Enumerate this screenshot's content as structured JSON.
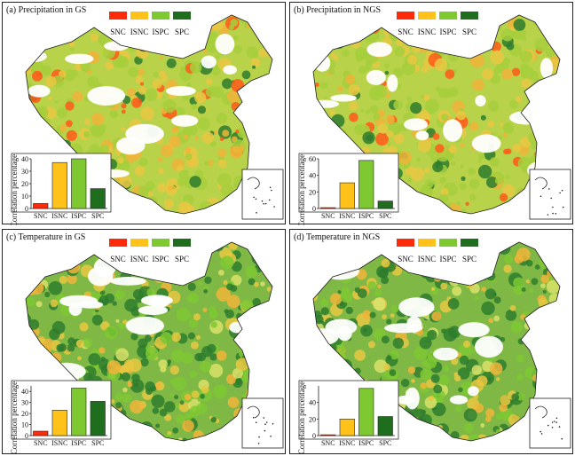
{
  "legend": {
    "categories": [
      "SNC",
      "ISNC",
      "ISPC",
      "SPC"
    ],
    "colors": [
      "#ff2a0a",
      "#ffc21a",
      "#7ec832",
      "#1e6e1e"
    ]
  },
  "panels": [
    {
      "title": "(a) Precipitation in GS",
      "ylabel": "Correlation percentage"
    },
    {
      "title": "(b) Precipitation in NGS",
      "ylabel": "Correlation percentage"
    },
    {
      "title": "(c) Temperature in GS",
      "ylabel": "Correlation percentage"
    },
    {
      "title": "(d) Temperature in NGS",
      "ylabel": "Correlation percentage"
    }
  ],
  "chart_data": [
    {
      "type": "bar",
      "title": "(a) Precipitation in GS",
      "categories": [
        "SNC",
        "ISNC",
        "ISPC",
        "SPC"
      ],
      "values": [
        4,
        37,
        40,
        16
      ],
      "ylabel": "Correlation percentage",
      "ylim": [
        0,
        40
      ],
      "yticks": [
        0,
        10,
        20,
        30,
        40
      ]
    },
    {
      "type": "bar",
      "title": "(b) Precipitation in NGS",
      "categories": [
        "SNC",
        "ISNC",
        "ISPC",
        "SPC"
      ],
      "values": [
        1,
        31,
        58,
        9
      ],
      "ylabel": "Correlation percentage",
      "ylim": [
        0,
        60
      ],
      "yticks": [
        0,
        20,
        40,
        60
      ]
    },
    {
      "type": "bar",
      "title": "(c) Temperature in GS",
      "categories": [
        "SNC",
        "ISNC",
        "ISPC",
        "SPC"
      ],
      "values": [
        4,
        23,
        43,
        31
      ],
      "ylabel": "Correlation percentage",
      "ylim": [
        0,
        45
      ],
      "yticks": [
        0,
        10,
        20,
        30,
        40
      ]
    },
    {
      "type": "bar",
      "title": "(d) Temperature in NGS",
      "categories": [
        "SNC",
        "ISNC",
        "ISPC",
        "SPC"
      ],
      "values": [
        1,
        20,
        57,
        23
      ],
      "ylabel": "Correlation percentage",
      "ylim": [
        0,
        60
      ],
      "yticks": [
        0,
        20,
        40
      ]
    }
  ]
}
